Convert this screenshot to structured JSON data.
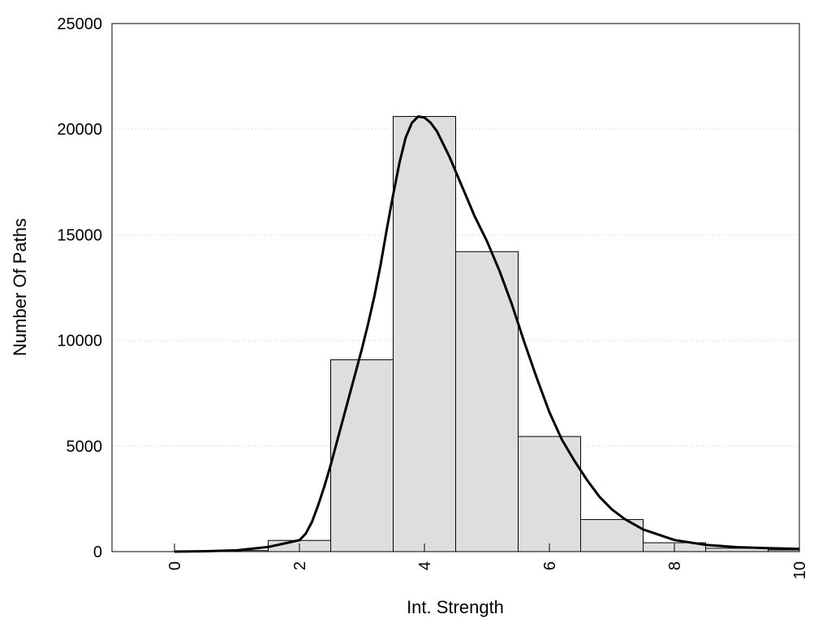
{
  "chart_data": {
    "type": "bar",
    "xlabel": "Int. Strength",
    "ylabel": "Number Of Paths",
    "xlim": [
      -1,
      10
    ],
    "ylim": [
      0,
      25000
    ],
    "x_ticks": [
      0,
      2,
      4,
      6,
      8,
      10
    ],
    "y_ticks": [
      0,
      5000,
      10000,
      15000,
      20000,
      25000
    ],
    "grid": "horizontal-dotted",
    "bin_width": 1,
    "bars": [
      {
        "x": 0,
        "value": 0
      },
      {
        "x": 1,
        "value": 50
      },
      {
        "x": 2,
        "value": 530
      },
      {
        "x": 3,
        "value": 9080
      },
      {
        "x": 4,
        "value": 20600
      },
      {
        "x": 5,
        "value": 14200
      },
      {
        "x": 6,
        "value": 5450
      },
      {
        "x": 7,
        "value": 1520
      },
      {
        "x": 8,
        "value": 420
      },
      {
        "x": 9,
        "value": 160
      },
      {
        "x": 10,
        "value": 80
      }
    ],
    "curve": {
      "x": [
        0,
        0.5,
        1,
        1.5,
        2,
        2.1,
        2.2,
        2.3,
        2.4,
        2.5,
        2.6,
        2.7,
        2.8,
        2.9,
        3,
        3.1,
        3.2,
        3.3,
        3.4,
        3.5,
        3.6,
        3.7,
        3.8,
        3.9,
        4,
        4.1,
        4.2,
        4.3,
        4.4,
        4.5,
        4.6,
        4.7,
        4.8,
        4.9,
        5,
        5.2,
        5.4,
        5.6,
        5.8,
        6,
        6.2,
        6.4,
        6.6,
        6.8,
        7,
        7.2,
        7.5,
        8,
        8.5,
        9,
        9.5,
        10
      ],
      "y": [
        0,
        20,
        60,
        220,
        540,
        850,
        1400,
        2200,
        3100,
        4100,
        5200,
        6300,
        7400,
        8500,
        9600,
        10800,
        12100,
        13600,
        15300,
        16900,
        18400,
        19600,
        20300,
        20600,
        20550,
        20300,
        19900,
        19300,
        18700,
        18000,
        17300,
        16600,
        15900,
        15300,
        14700,
        13300,
        11700,
        9900,
        8200,
        6600,
        5300,
        4300,
        3400,
        2600,
        2000,
        1550,
        1050,
        550,
        320,
        210,
        160,
        130
      ]
    },
    "colors": {
      "bar_fill": "#dedede",
      "bar_stroke": "#000000",
      "curve": "#000000",
      "grid": "#cccccc"
    }
  }
}
